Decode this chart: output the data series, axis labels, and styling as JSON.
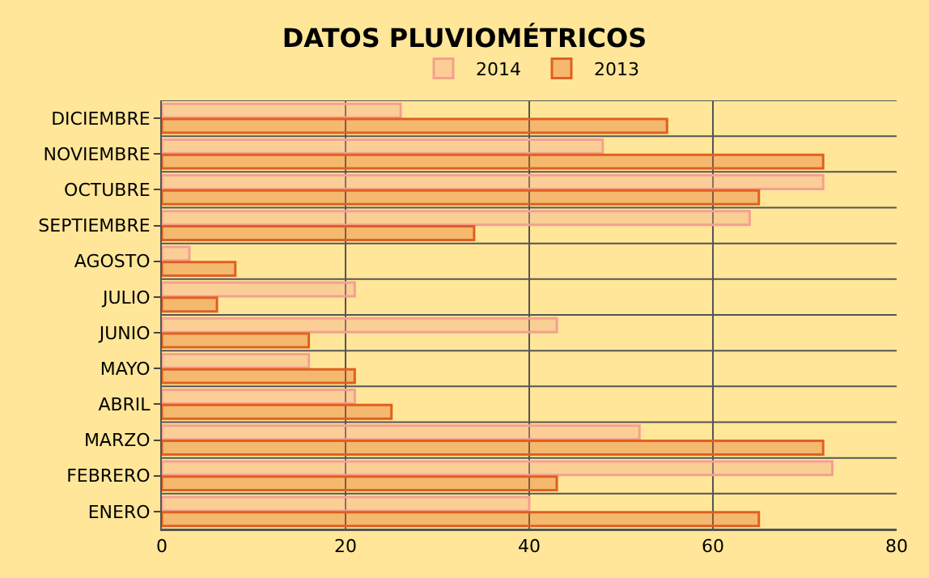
{
  "chart_data": {
    "type": "bar",
    "orientation": "horizontal",
    "title": "DATOS PLUVIOMÉTRICOS",
    "categories": [
      "DICIEMBRE",
      "NOVIEMBRE",
      "OCTUBRE",
      "SEPTIEMBRE",
      "AGOSTO",
      "JULIO",
      "JUNIO",
      "MAYO",
      "ABRIL",
      "MARZO",
      "FEBRERO",
      "ENERO"
    ],
    "series": [
      {
        "name": "2014",
        "color": "#f4a090",
        "values": [
          26,
          48,
          72,
          64,
          3,
          21,
          43,
          16,
          21,
          52,
          73,
          40
        ]
      },
      {
        "name": "2013",
        "color": "#e06020",
        "values": [
          55,
          72,
          65,
          34,
          8,
          6,
          16,
          21,
          25,
          72,
          43,
          65
        ]
      }
    ],
    "xlim": [
      0,
      80
    ],
    "xticks": [
      0,
      20,
      40,
      60,
      80
    ],
    "grid": true,
    "legend": "top"
  }
}
